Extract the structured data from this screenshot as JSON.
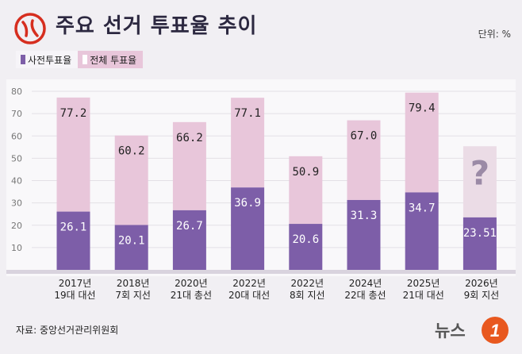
{
  "title": "주요 선거 투표율 추이",
  "unit": "단위: %",
  "source": "자료: 중앙선거관리위원회",
  "brand": {
    "name": "뉴스",
    "badge": "1"
  },
  "colors": {
    "early": "#7d5ea8",
    "total": "#e8c6da",
    "logo": "#d62e1f",
    "badge": "#e8581f"
  },
  "chart_data": {
    "type": "bar",
    "ylim": [
      0,
      80
    ],
    "yticks": [
      "10",
      "20",
      "30",
      "40",
      "50",
      "60",
      "70",
      "80"
    ],
    "categories": [
      [
        "2017년",
        "19대 대선"
      ],
      [
        "2018년",
        "7회 지선"
      ],
      [
        "2020년",
        "21대 총선"
      ],
      [
        "2022년",
        "20대 대선"
      ],
      [
        "2022년",
        "8회 지선"
      ],
      [
        "2024년",
        "22대 총선"
      ],
      [
        "2025년",
        "21대 대선"
      ],
      [
        "2026년",
        "9회 지선"
      ]
    ],
    "series": [
      {
        "name": "사전투표율",
        "values": [
          26.1,
          20.1,
          26.7,
          36.9,
          20.6,
          31.3,
          34.7,
          23.51
        ],
        "labels": [
          "26.1",
          "20.1",
          "26.7",
          "36.9",
          "20.6",
          "31.3",
          "34.7",
          "23.51"
        ]
      },
      {
        "name": "전체 투표율",
        "values": [
          77.2,
          60.2,
          66.2,
          77.1,
          50.9,
          67.0,
          79.4,
          null
        ],
        "labels": [
          "77.2",
          "60.2",
          "66.2",
          "77.1",
          "50.9",
          "67.0",
          "79.4",
          "?"
        ]
      }
    ]
  }
}
